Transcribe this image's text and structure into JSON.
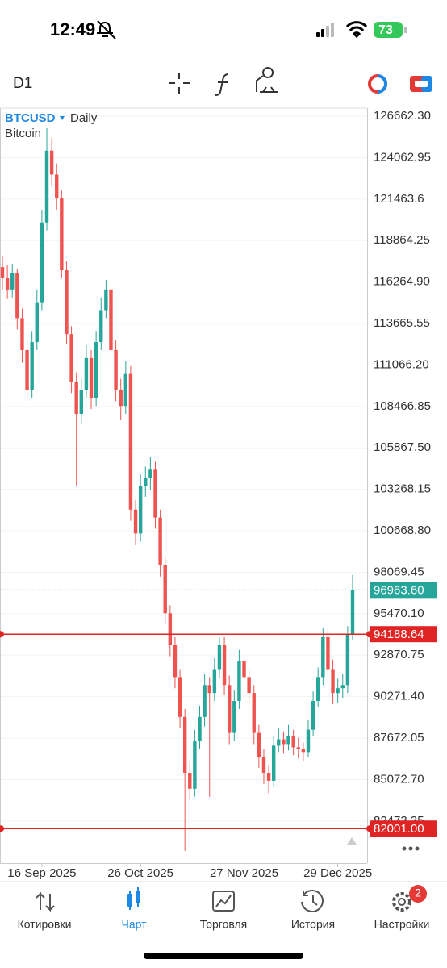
{
  "status_bar": {
    "time": "12:49",
    "battery": "73"
  },
  "toolbar": {
    "timeframe": "D1"
  },
  "chart_data": {
    "type": "candlestick",
    "symbol": "BTCUSD",
    "period": "Daily",
    "description": "Bitcoin",
    "up_color": "#26a69a",
    "down_color": "#ef5350",
    "grid": true,
    "ylim": [
      79838,
      127168
    ],
    "yticks": [
      {
        "value": 126662.3,
        "label": "126662.30"
      },
      124062.95,
      121463.6,
      118864.25,
      {
        "value": 116264.9,
        "label": "116264.90"
      },
      113665.55,
      {
        "value": 111066.2,
        "label": "111066.20"
      },
      108466.85,
      {
        "value": 105867.5,
        "label": "105867.50"
      },
      103268.15,
      {
        "value": 100668.8,
        "label": "100668.80"
      },
      98069.45,
      {
        "value": 95470.1,
        "label": "95470.10"
      },
      92870.75,
      {
        "value": 90271.4,
        "label": "90271.40"
      },
      87672.05,
      {
        "value": 85072.7,
        "label": "85072.70"
      },
      82473.35
    ],
    "xlim": [
      0,
      71
    ],
    "xticks": [
      {
        "value": 8,
        "label": "16 Sep 2025"
      },
      {
        "value": 28,
        "label": "26 Oct 2025"
      },
      {
        "value": 49,
        "label": "27 Nov 2025"
      },
      {
        "value": 68,
        "label": "29 Dec 2025"
      }
    ],
    "price_lines": [
      {
        "value": 96963.6,
        "label": "96963.60",
        "color": "#26a69a",
        "style": "dotted"
      },
      {
        "value": 94188.64,
        "label": "94188.64",
        "color": "#e02424",
        "style": "solid"
      },
      {
        "value": 82001,
        "label": "82001.00",
        "color": "#e02424",
        "style": "solid"
      }
    ],
    "candles": [
      [
        117200,
        117900,
        115800,
        116500
      ],
      [
        116500,
        117300,
        115200,
        115800
      ],
      [
        115800,
        117400,
        115300,
        116800
      ],
      [
        116800,
        117100,
        113300,
        114000
      ],
      [
        114000,
        114600,
        111200,
        112000
      ],
      [
        112000,
        112600,
        108800,
        109500
      ],
      [
        109500,
        113200,
        109000,
        112500
      ],
      [
        112500,
        115800,
        112000,
        115000
      ],
      [
        115000,
        120800,
        114500,
        120000
      ],
      [
        120000,
        125900,
        119500,
        124500
      ],
      [
        124500,
        125300,
        122300,
        123000
      ],
      [
        123000,
        123700,
        120800,
        121500
      ],
      [
        121500,
        122000,
        116500,
        117000
      ],
      [
        117000,
        117600,
        112400,
        113000
      ],
      [
        113000,
        113500,
        109300,
        110000
      ],
      [
        110000,
        110600,
        103500,
        108000
      ],
      [
        108000,
        110200,
        107400,
        109500
      ],
      [
        109500,
        112300,
        109000,
        111500
      ],
      [
        111500,
        112000,
        108300,
        109000
      ],
      [
        109000,
        113200,
        108500,
        112500
      ],
      [
        112500,
        115300,
        112000,
        114500
      ],
      [
        114500,
        116400,
        114000,
        115800
      ],
      [
        115800,
        116200,
        111300,
        112000
      ],
      [
        112000,
        112600,
        108800,
        109500
      ],
      [
        109500,
        110200,
        107600,
        108500
      ],
      [
        108500,
        111300,
        108000,
        110500
      ],
      [
        110500,
        111000,
        101300,
        102000
      ],
      [
        102000,
        102600,
        99800,
        100500
      ],
      [
        100500,
        104200,
        100000,
        103500
      ],
      [
        103500,
        104700,
        102800,
        104000
      ],
      [
        104000,
        105300,
        103200,
        104500
      ],
      [
        104500,
        105000,
        100800,
        101500
      ],
      [
        101500,
        102000,
        97800,
        98500
      ],
      [
        98500,
        99000,
        94800,
        95500
      ],
      [
        95500,
        96000,
        92800,
        93500
      ],
      [
        93500,
        94000,
        90800,
        91500
      ],
      [
        91500,
        92000,
        88300,
        89000
      ],
      [
        89000,
        89500,
        80600,
        85500
      ],
      [
        85500,
        86200,
        83800,
        84500
      ],
      [
        84500,
        88200,
        84000,
        87500
      ],
      [
        87500,
        89700,
        87000,
        89000
      ],
      [
        89000,
        91700,
        88400,
        91000
      ],
      [
        91000,
        91500,
        84000,
        90500
      ],
      [
        90500,
        92700,
        90000,
        92000
      ],
      [
        92000,
        94000,
        91400,
        93500
      ],
      [
        93500,
        94000,
        90400,
        91000
      ],
      [
        91000,
        91600,
        87300,
        88000
      ],
      [
        88000,
        90700,
        87500,
        90000
      ],
      [
        90000,
        93200,
        89500,
        92500
      ],
      [
        92500,
        93000,
        90800,
        91500
      ],
      [
        91500,
        92000,
        89800,
        90500
      ],
      [
        90500,
        91000,
        87300,
        88000
      ],
      [
        88000,
        88500,
        85800,
        86500
      ],
      [
        86500,
        87000,
        84800,
        85500
      ],
      [
        85500,
        86000,
        84200,
        85000
      ],
      [
        85000,
        87800,
        84600,
        87200
      ],
      [
        87200,
        88300,
        86800,
        87600
      ],
      [
        87600,
        88100,
        86700,
        87300
      ],
      [
        87300,
        88500,
        86900,
        87800
      ],
      [
        87800,
        88200,
        86600,
        87100
      ],
      [
        87100,
        87700,
        86400,
        87000
      ],
      [
        87000,
        87400,
        86200,
        86800
      ],
      [
        86800,
        88800,
        86500,
        88200
      ],
      [
        88200,
        90600,
        87800,
        90000
      ],
      [
        90000,
        92100,
        89600,
        91500
      ],
      [
        91500,
        94600,
        91000,
        94000
      ],
      [
        94000,
        94500,
        91400,
        92000
      ],
      [
        92000,
        92600,
        89800,
        90500
      ],
      [
        90500,
        91400,
        89900,
        90800
      ],
      [
        90800,
        91700,
        90200,
        91000
      ],
      [
        91000,
        94700,
        90500,
        94200
      ],
      [
        94200,
        97900,
        93800,
        96963.6
      ]
    ]
  },
  "tab_bar": {
    "tabs": [
      "Котировки",
      "Чарт",
      "Торговля",
      "История",
      "Настройки"
    ],
    "badge": "2"
  }
}
